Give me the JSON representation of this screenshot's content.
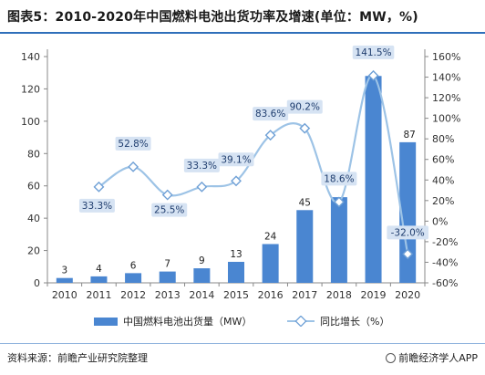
{
  "title": "图表5：2010-2020年中国燃料电池出货功率及增速(单位：MW，%)",
  "chart_data": {
    "type": "bar",
    "categories": [
      "2010",
      "2011",
      "2012",
      "2013",
      "2014",
      "2015",
      "2016",
      "2017",
      "2018",
      "2019",
      "2020"
    ],
    "series": [
      {
        "name": "中国燃料电池出货量（MW）",
        "type": "bar",
        "axis": "left",
        "values": [
          3,
          4,
          6,
          7,
          9,
          13,
          24,
          45,
          53,
          128,
          87
        ],
        "data_labels": [
          "3",
          "4",
          "6",
          "7",
          "9",
          "13",
          "24",
          "45",
          "",
          "",
          ""
        ]
      },
      {
        "name": "同比增长（%）",
        "type": "line",
        "axis": "right",
        "values": [
          null,
          33.3,
          52.8,
          25.5,
          33.3,
          39.1,
          83.6,
          90.2,
          18.6,
          141.5,
          -32.0
        ],
        "data_labels": [
          "",
          "33.3%",
          "52.8%",
          "25.5%",
          "33.3%",
          "39.1%",
          "83.6%",
          "90.2%",
          "18.6%",
          "141.5%",
          "-32.0%"
        ]
      }
    ],
    "bar_top_labels": [
      "",
      "",
      "",
      "",
      "",
      "",
      "",
      "",
      "",
      "",
      "87"
    ],
    "y_left": {
      "ylim": [
        0,
        140
      ],
      "ticks": [
        "0",
        "20",
        "40",
        "60",
        "80",
        "100",
        "120",
        "140"
      ]
    },
    "y_right": {
      "ylim": [
        -60,
        160
      ],
      "ticks": [
        "-60%",
        "-40%",
        "-20%",
        "0%",
        "20%",
        "40%",
        "60%",
        "80%",
        "100%",
        "120%",
        "140%",
        "160%"
      ]
    },
    "grid": false,
    "legend_position": "bottom",
    "colors": {
      "bar": "#4a86d1",
      "line": "#9dc3e6",
      "marker_fill": "#ffffff",
      "marker_stroke": "#6fa0d6",
      "label_box": "#d6e3f3"
    }
  },
  "legend": {
    "bar_label": "中国燃料电池出货量（MW）",
    "line_label": "同比增长（%）"
  },
  "footer": {
    "source": "资料来源：前瞻产业研究院整理",
    "brand": "前瞻经济学人APP"
  }
}
